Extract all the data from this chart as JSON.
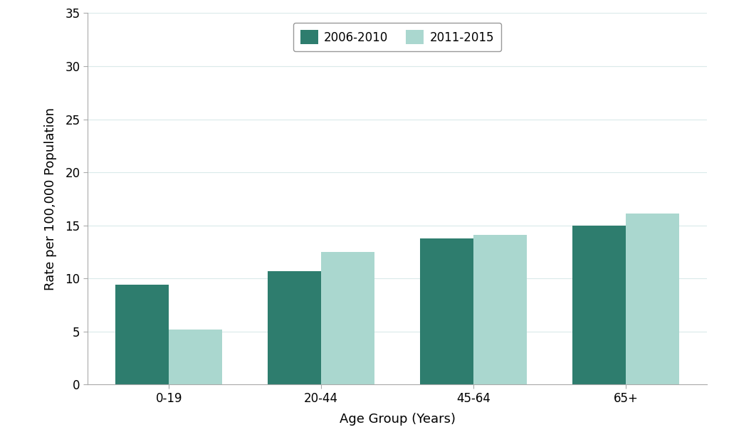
{
  "categories": [
    "0-19",
    "20-44",
    "45-64",
    "65+"
  ],
  "series": [
    {
      "label": "2006-2010",
      "values": [
        9.4,
        10.7,
        13.8,
        15.0
      ],
      "color": "#2e7d6e"
    },
    {
      "label": "2011-2015",
      "values": [
        5.2,
        12.5,
        14.1,
        16.1
      ],
      "color": "#aad7cf"
    }
  ],
  "ylabel": "Rate per 100,000 Population",
  "xlabel": "Age Group (Years)",
  "ylim": [
    0,
    35
  ],
  "yticks": [
    0,
    5,
    10,
    15,
    20,
    25,
    30,
    35
  ],
  "bar_width": 0.35,
  "background_color": "#ffffff",
  "grid_color": "#daeaea",
  "legend_fontsize": 12,
  "axis_fontsize": 13,
  "tick_fontsize": 12
}
